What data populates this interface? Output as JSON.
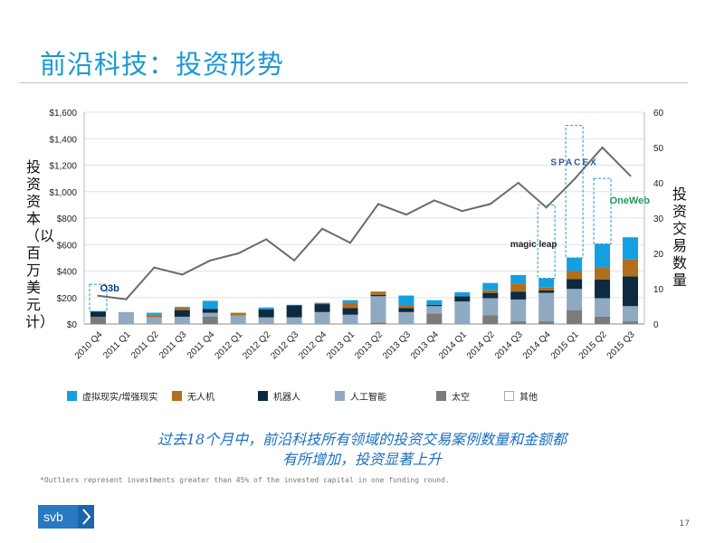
{
  "slide": {
    "title": "前沿科技：投资形势",
    "takeaway_line1": "过去18个月中，前沿科技所有领域的投资交易案例数量和金额都",
    "takeaway_line2": "有所增加，投资显著上升",
    "footnote": "*Outliers represent investments greater than 45% of the invested capital in one funding round.",
    "logo_text": "svb",
    "page_number": "17"
  },
  "chart_data": {
    "type": "bar",
    "stacked": true,
    "title": "",
    "ylabel_left": "投资资本（以百万美元计）",
    "ylabel_right": "投资交易数量",
    "ylim_left": [
      0,
      1600
    ],
    "ylim_right": [
      0,
      60
    ],
    "yticks_left": [
      "$0",
      "$200",
      "$400",
      "$600",
      "$800",
      "$1,000",
      "$1,200",
      "$1,400",
      "$1,600"
    ],
    "yticks_right": [
      "0",
      "10",
      "20",
      "30",
      "40",
      "50",
      "60"
    ],
    "categories": [
      "2010 Q4",
      "2011 Q1",
      "2011 Q2",
      "2011 Q3",
      "2011 Q4",
      "2012 Q1",
      "2012 Q2",
      "2012 Q3",
      "2012 Q4",
      "2013 Q1",
      "2013 Q2",
      "2013 Q3",
      "2013 Q4",
      "2014 Q1",
      "2014 Q2",
      "2014 Q3",
      "2014 Q4",
      "2015 Q1",
      "2015 Q2",
      "2015 Q3"
    ],
    "series": [
      {
        "name": "太空",
        "color": "#7b7b7b",
        "values": [
          55,
          0,
          0,
          0,
          55,
          0,
          0,
          0,
          0,
          0,
          10,
          0,
          80,
          0,
          65,
          20,
          20,
          105,
          55,
          20
        ]
      },
      {
        "name": "人工智能",
        "color": "#8fa9c1",
        "values": [
          0,
          90,
          50,
          55,
          30,
          65,
          50,
          50,
          90,
          70,
          200,
          90,
          55,
          170,
          130,
          165,
          215,
          160,
          140,
          115
        ]
      },
      {
        "name": "机器人",
        "color": "#0c2a40",
        "values": [
          40,
          0,
          0,
          50,
          30,
          0,
          60,
          90,
          60,
          50,
          10,
          30,
          10,
          40,
          40,
          60,
          20,
          75,
          140,
          225
        ]
      },
      {
        "name": "无人机",
        "color": "#b06f1e",
        "values": [
          0,
          0,
          20,
          20,
          0,
          20,
          0,
          0,
          10,
          40,
          25,
          20,
          0,
          0,
          20,
          60,
          20,
          60,
          95,
          130
        ]
      },
      {
        "name": "虚拟现实/增强现实",
        "color": "#14a0e0",
        "values": [
          0,
          0,
          15,
          5,
          60,
          0,
          15,
          5,
          0,
          20,
          0,
          75,
          35,
          30,
          55,
          65,
          70,
          100,
          175,
          165
        ]
      },
      {
        "name": "其他",
        "color": "#ffffff",
        "values": [
          0,
          0,
          0,
          0,
          0,
          0,
          0,
          0,
          0,
          0,
          0,
          0,
          0,
          0,
          0,
          0,
          0,
          0,
          0,
          0
        ]
      }
    ],
    "line": {
      "name": "投资交易数量",
      "color": "#6b6b6b",
      "values": [
        8,
        7,
        16,
        14,
        18,
        20,
        24,
        18,
        27,
        23,
        34,
        31,
        35,
        32,
        34,
        40,
        33,
        41,
        50,
        42
      ]
    },
    "outliers": [
      {
        "category": "2010 Q4",
        "label": "O3b",
        "value": 300
      },
      {
        "category": "2014 Q4",
        "label": "magic leap",
        "value": 900
      },
      {
        "category": "2015 Q1",
        "label": "SPACEX",
        "value": 1500
      },
      {
        "category": "2015 Q2",
        "label": "OneWeb",
        "value": 1100
      }
    ]
  }
}
